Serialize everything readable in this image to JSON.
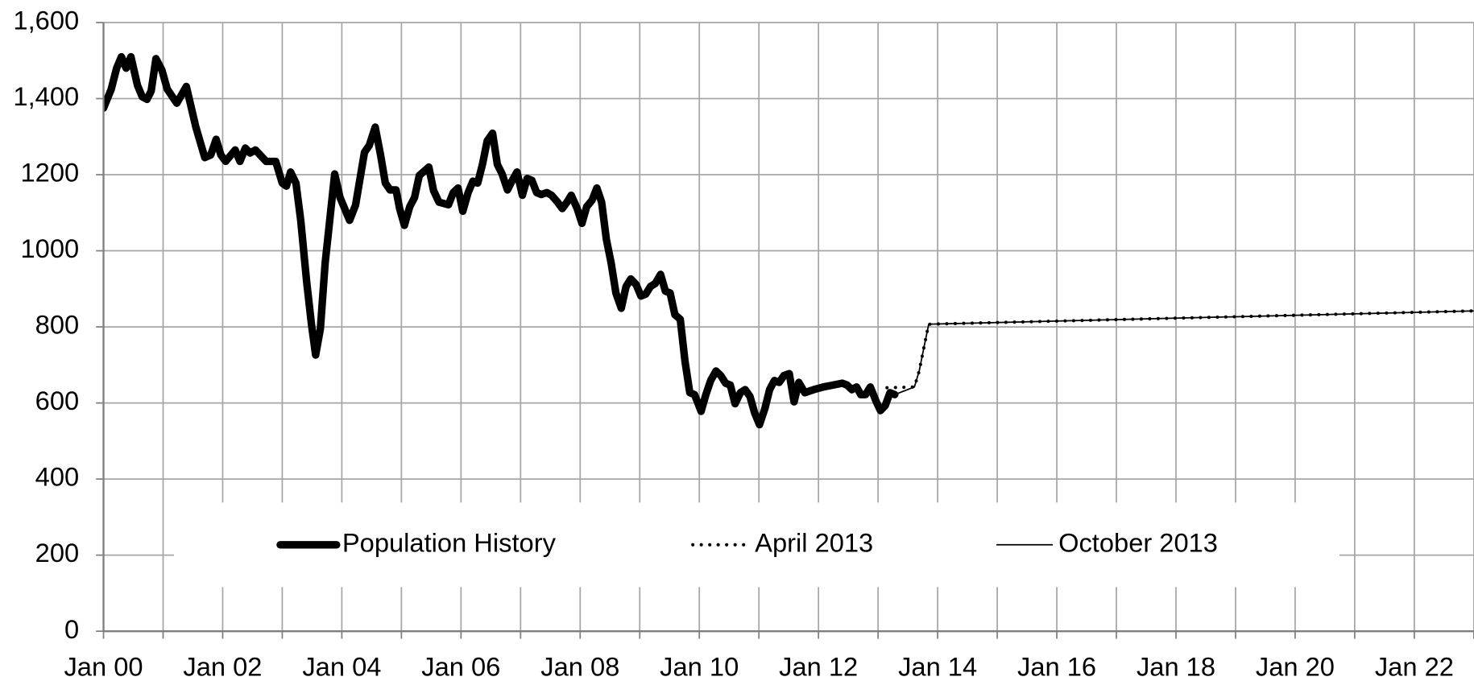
{
  "chart_data": {
    "type": "line",
    "xlim": [
      2000,
      2023
    ],
    "xticks": [
      {
        "value": 2000,
        "label": "Jan 00"
      },
      {
        "value": 2002,
        "label": "Jan 02"
      },
      {
        "value": 2004,
        "label": "Jan 04"
      },
      {
        "value": 2006,
        "label": "Jan 06"
      },
      {
        "value": 2008,
        "label": "Jan 08"
      },
      {
        "value": 2010,
        "label": "Jan 10"
      },
      {
        "value": 2012,
        "label": "Jan 12"
      },
      {
        "value": 2014,
        "label": "Jan 14"
      },
      {
        "value": 2016,
        "label": "Jan 16"
      },
      {
        "value": 2018,
        "label": "Jan 18"
      },
      {
        "value": 2020,
        "label": "Jan 20"
      },
      {
        "value": 2022,
        "label": "Jan 22"
      }
    ],
    "xminorticks": [
      2001,
      2003,
      2005,
      2007,
      2009,
      2011,
      2013,
      2015,
      2017,
      2019,
      2021,
      2023
    ],
    "ylim": [
      0,
      1600
    ],
    "yticks": [
      0,
      200,
      400,
      600,
      800,
      1000,
      1200,
      {
        "value": 1400,
        "label": "1,400"
      },
      {
        "value": 1600,
        "label": "1,600"
      }
    ],
    "grid": true,
    "legend": "bottom",
    "series": [
      {
        "name": "Population History",
        "color": "#000000",
        "line_style": "thick",
        "x": [
          2000.0,
          2000.13,
          2000.22,
          2000.3,
          2000.38,
          2000.46,
          2000.57,
          2000.65,
          2000.73,
          2000.8,
          2000.88,
          2000.98,
          2001.07,
          2001.23,
          2001.39,
          2001.55,
          2001.7,
          2001.8,
          2001.89,
          2001.97,
          2002.05,
          2002.21,
          2002.29,
          2002.38,
          2002.46,
          2002.55,
          2002.73,
          2002.89,
          2003.0,
          2003.07,
          2003.14,
          2003.23,
          2003.31,
          2003.41,
          2003.49,
          2003.56,
          2003.64,
          2003.72,
          2003.88,
          2003.97,
          2004.13,
          2004.23,
          2004.38,
          2004.46,
          2004.56,
          2004.65,
          2004.73,
          2004.81,
          2004.91,
          2004.97,
          2005.05,
          2005.14,
          2005.22,
          2005.3,
          2005.46,
          2005.54,
          2005.63,
          2005.79,
          2005.87,
          2005.95,
          2006.03,
          2006.12,
          2006.2,
          2006.28,
          2006.36,
          2006.44,
          2006.53,
          2006.61,
          2006.69,
          2006.78,
          2006.86,
          2006.94,
          2007.03,
          2007.11,
          2007.19,
          2007.27,
          2007.35,
          2007.44,
          2007.52,
          2007.62,
          2007.7,
          2007.78,
          2007.85,
          2007.95,
          2008.03,
          2008.11,
          2008.2,
          2008.28,
          2008.36,
          2008.44,
          2008.52,
          2008.6,
          2008.69,
          2008.77,
          2008.85,
          2008.94,
          2009.02,
          2009.1,
          2009.18,
          2009.26,
          2009.35,
          2009.43,
          2009.51,
          2009.59,
          2009.68,
          2009.76,
          2009.84,
          2009.92,
          2010.03,
          2010.11,
          2010.19,
          2010.28,
          2010.36,
          2010.44,
          2010.52,
          2010.6,
          2010.69,
          2010.77,
          2010.85,
          2010.93,
          2011.01,
          2011.1,
          2011.18,
          2011.26,
          2011.34,
          2011.42,
          2011.51,
          2011.59,
          2011.67,
          2011.77,
          2011.92,
          2012.08,
          2012.24,
          2012.4,
          2012.48,
          2012.56,
          2012.64,
          2012.71,
          2012.79,
          2012.87,
          2012.97,
          2013.04,
          2013.12,
          2013.2,
          2013.28
        ],
        "values": [
          1375,
          1425,
          1480,
          1510,
          1480,
          1510,
          1435,
          1405,
          1398,
          1420,
          1505,
          1475,
          1425,
          1388,
          1432,
          1325,
          1245,
          1252,
          1293,
          1252,
          1235,
          1265,
          1235,
          1270,
          1257,
          1265,
          1235,
          1235,
          1178,
          1170,
          1207,
          1178,
          1080,
          918,
          807,
          726,
          795,
          968,
          1202,
          1140,
          1080,
          1120,
          1259,
          1277,
          1325,
          1252,
          1178,
          1160,
          1160,
          1111,
          1067,
          1116,
          1140,
          1198,
          1220,
          1158,
          1128,
          1121,
          1153,
          1165,
          1104,
          1153,
          1183,
          1178,
          1227,
          1289,
          1309,
          1227,
          1202,
          1160,
          1185,
          1207,
          1146,
          1190,
          1185,
          1153,
          1148,
          1153,
          1146,
          1128,
          1111,
          1128,
          1146,
          1111,
          1072,
          1116,
          1133,
          1165,
          1128,
          1030,
          968,
          889,
          849,
          906,
          926,
          911,
          881,
          886,
          906,
          914,
          938,
          894,
          889,
          832,
          820,
          709,
          627,
          622,
          578,
          622,
          659,
          684,
          672,
          652,
          647,
          598,
          627,
          635,
          617,
          573,
          543,
          585,
          635,
          659,
          654,
          672,
          677,
          603,
          654,
          627,
          635,
          642,
          647,
          652,
          647,
          635,
          642,
          622,
          622,
          642,
          603,
          580,
          593,
          627,
          622
        ]
      },
      {
        "name": "April 2013",
        "color": "#000000",
        "line_style": "dotted",
        "x": [
          2013.15,
          2013.61,
          2013.69,
          2013.77,
          2013.85,
          2023.0
        ],
        "values": [
          640,
          642,
          684,
          746,
          807,
          842
        ]
      },
      {
        "name": "October 2013",
        "color": "#000000",
        "line_style": "thin",
        "x": [
          2013.28,
          2013.61,
          2013.69,
          2013.77,
          2013.85,
          2023.0
        ],
        "values": [
          622,
          642,
          684,
          746,
          807,
          842
        ]
      }
    ]
  }
}
